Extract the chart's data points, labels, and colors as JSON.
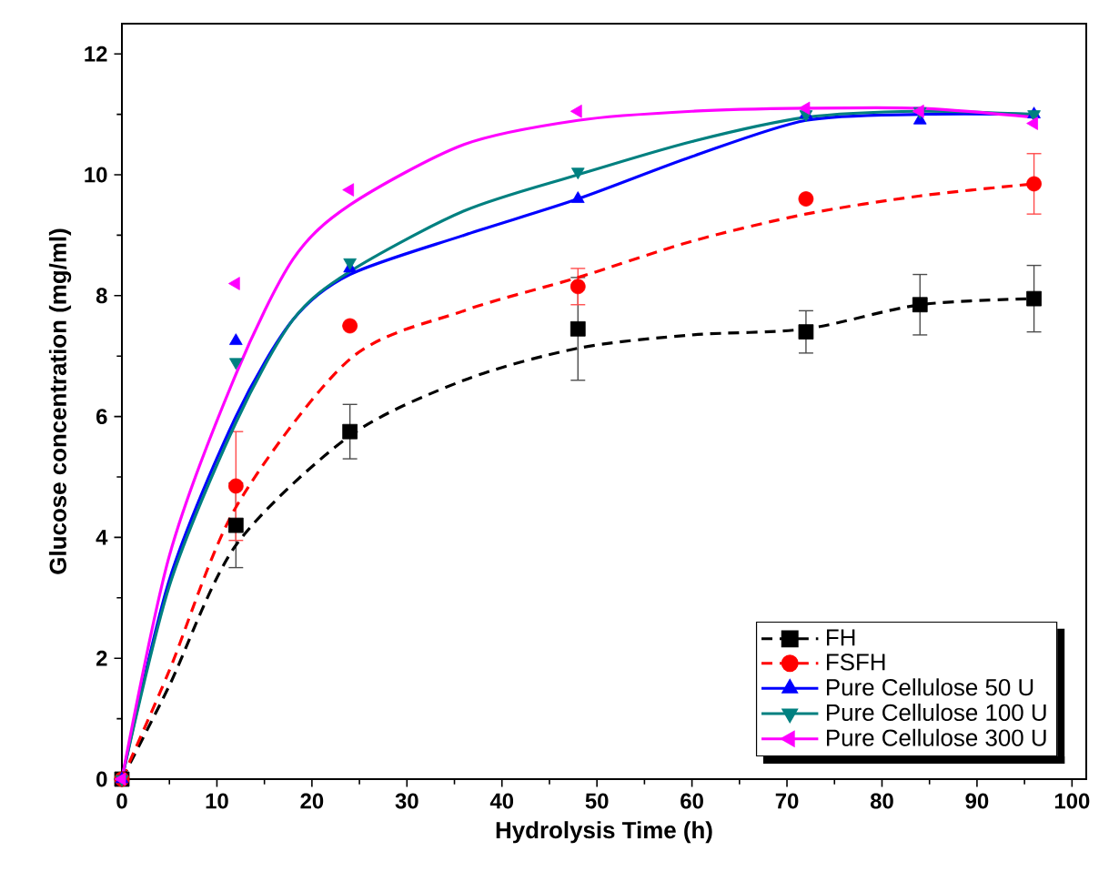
{
  "chart_data": {
    "type": "scatter",
    "xlabel": "Hydrolysis Time (h)",
    "ylabel": "Glucose concentration (mg/ml)",
    "xlim": [
      0,
      101.5
    ],
    "ylim": [
      0,
      12.5
    ],
    "xticks": [
      0,
      10,
      20,
      30,
      40,
      50,
      60,
      70,
      80,
      90,
      100
    ],
    "yticks": [
      0,
      2,
      4,
      6,
      8,
      10,
      12
    ],
    "legend": "bottom right",
    "series": [
      {
        "name": "FH",
        "type": "scatter",
        "marker": "square",
        "color": "#000000",
        "x": [
          0,
          12,
          24,
          48,
          72,
          84,
          96
        ],
        "values": [
          0,
          4.2,
          5.75,
          7.45,
          7.4,
          7.85,
          7.95
        ],
        "errors": [
          null,
          0.7,
          0.45,
          0.85,
          0.35,
          0.5,
          0.55
        ]
      },
      {
        "type": "line",
        "line_style": "dashed",
        "color": "#000000",
        "x": [
          0,
          5,
          12,
          24,
          36,
          48,
          60,
          72,
          84,
          96
        ],
        "values": [
          0,
          1.55,
          3.87,
          5.68,
          6.6,
          7.13,
          7.35,
          7.45,
          7.85,
          7.95
        ]
      },
      {
        "name": "FSFH",
        "type": "scatter",
        "marker": "circle",
        "color": "#ff0000",
        "x": [
          0,
          12,
          24,
          48,
          72,
          96
        ],
        "values": [
          0,
          4.85,
          7.5,
          8.15,
          9.6,
          9.85
        ],
        "errors": [
          null,
          0.9,
          null,
          0.3,
          null,
          0.5
        ]
      },
      {
        "type": "line",
        "line_style": "dashed",
        "color": "#ff0000",
        "x": [
          0,
          5,
          12,
          24,
          36,
          48,
          60,
          72,
          84,
          96
        ],
        "values": [
          0,
          1.8,
          4.5,
          6.95,
          7.75,
          8.3,
          8.9,
          9.35,
          9.65,
          9.85
        ]
      },
      {
        "name": "Pure Cellulose 50 U",
        "type": "scatter",
        "marker": "triangle",
        "color": "#0000ff",
        "x": [
          0,
          12,
          24,
          48,
          72,
          84,
          96
        ],
        "values": [
          0,
          7.25,
          8.45,
          9.6,
          11.0,
          10.9,
          11.0
        ]
      },
      {
        "type": "line",
        "line_style": "solid",
        "color": "#0000ff",
        "x": [
          0,
          5,
          12,
          18,
          24,
          36,
          48,
          60,
          72,
          84,
          96
        ],
        "values": [
          0,
          3.3,
          6.0,
          7.6,
          8.35,
          9.0,
          9.6,
          10.3,
          10.9,
          11.0,
          11.0
        ]
      },
      {
        "name": "Pure Cellulose 100 U",
        "type": "scatter",
        "marker": "triangle-down",
        "color": "#008080",
        "x": [
          0,
          12,
          24,
          48,
          72,
          84,
          96
        ],
        "values": [
          0,
          6.9,
          8.55,
          10.05,
          11.0,
          11.05,
          11.0
        ]
      },
      {
        "type": "line",
        "line_style": "solid",
        "color": "#008080",
        "x": [
          0,
          5,
          12,
          18,
          24,
          36,
          48,
          60,
          72,
          84,
          96
        ],
        "values": [
          0,
          3.2,
          5.9,
          7.6,
          8.4,
          9.4,
          10.0,
          10.55,
          10.95,
          11.05,
          11.0
        ]
      },
      {
        "name": "Pure Cellulose 300 U",
        "type": "scatter",
        "marker": "triangle-left",
        "color": "#ff00ff",
        "x": [
          0,
          12,
          24,
          48,
          72,
          84,
          96
        ],
        "values": [
          0,
          8.2,
          9.75,
          11.05,
          11.1,
          11.05,
          10.85
        ]
      },
      {
        "type": "line",
        "line_style": "solid",
        "color": "#ff00ff",
        "x": [
          0,
          5,
          12,
          18,
          24,
          36,
          48,
          60,
          72,
          84,
          96
        ],
        "values": [
          0,
          3.7,
          6.7,
          8.6,
          9.5,
          10.5,
          10.9,
          11.05,
          11.1,
          11.1,
          10.95
        ]
      }
    ]
  }
}
